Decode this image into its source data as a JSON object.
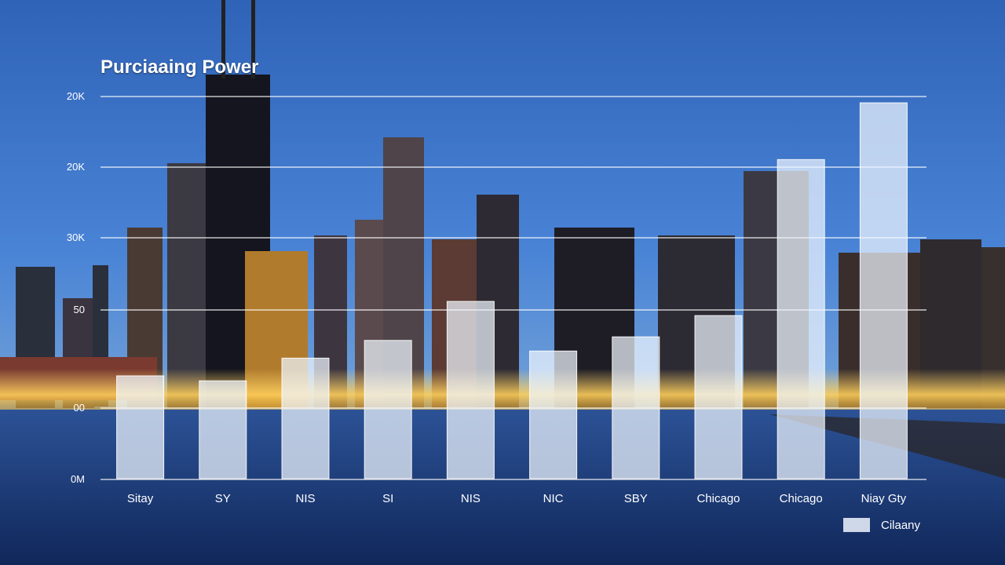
{
  "chart_data": {
    "type": "bar",
    "title": "Purciaaing Power",
    "y_tick_labels": [
      "20K",
      "20K",
      "30K",
      "50",
      "00",
      "0M"
    ],
    "categories": [
      "Sitay",
      "SY",
      "NIS",
      "SI",
      "NIS",
      "NIC",
      "SBY",
      "Chicago",
      "Chicago",
      "Niay Gty"
    ],
    "series": [
      {
        "name": "Cilaany",
        "values": [
          1.45,
          1.38,
          1.7,
          1.95,
          2.5,
          1.8,
          2.0,
          2.3,
          4.5,
          5.3
        ]
      }
    ],
    "ylim": [
      0,
      5.4
    ],
    "grid": true,
    "legend_position": "bottom-right",
    "bar_color": "#f0f6ff"
  }
}
